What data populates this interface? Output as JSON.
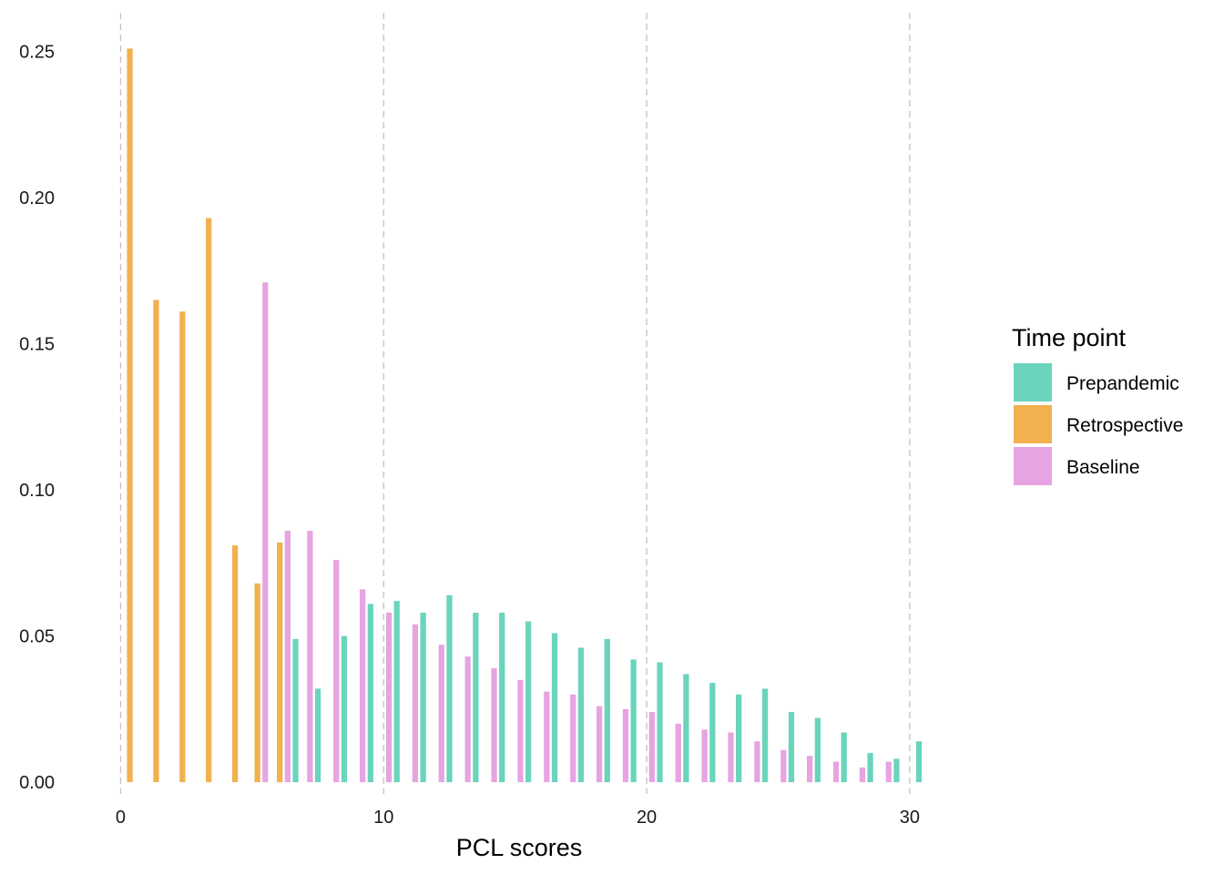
{
  "chart_data": {
    "type": "bar",
    "xlabel": "PCL scores",
    "ylabel": "",
    "title": "",
    "xlim": [
      -0.5,
      30.8
    ],
    "ylim": [
      -0.004,
      0.262
    ],
    "x_ticks": [
      0,
      10,
      20,
      30
    ],
    "y_ticks": [
      "0.00",
      "0.05",
      "0.10",
      "0.15",
      "0.20",
      "0.25"
    ],
    "grid": {
      "x_major": "dashed",
      "y": "off"
    },
    "legend": {
      "title": "Time point",
      "position": "right",
      "entries": [
        "Prepandemic",
        "Retrospective",
        "Baseline"
      ]
    },
    "series": [
      {
        "name": "Prepandemic",
        "color": "#6ad4bc",
        "points": [
          [
            6,
            0.049
          ],
          [
            7,
            0.032
          ],
          [
            8,
            0.05
          ],
          [
            9,
            0.061
          ],
          [
            10,
            0.062
          ],
          [
            11,
            0.058
          ],
          [
            12,
            0.064
          ],
          [
            13,
            0.058
          ],
          [
            14,
            0.058
          ],
          [
            15,
            0.055
          ],
          [
            16,
            0.051
          ],
          [
            17,
            0.046
          ],
          [
            18,
            0.049
          ],
          [
            19,
            0.042
          ],
          [
            20,
            0.041
          ],
          [
            21,
            0.037
          ],
          [
            22,
            0.034
          ],
          [
            23,
            0.03
          ],
          [
            24,
            0.032
          ],
          [
            25,
            0.024
          ],
          [
            26,
            0.022
          ],
          [
            27,
            0.017
          ],
          [
            28,
            0.01
          ],
          [
            29,
            0.008
          ],
          [
            30,
            0.014
          ]
        ]
      },
      {
        "name": "Retrospective",
        "color": "#f2b04f",
        "points": [
          [
            0,
            0.251
          ],
          [
            1,
            0.165
          ],
          [
            2,
            0.161
          ],
          [
            3,
            0.193
          ],
          [
            4,
            0.081
          ],
          [
            5,
            0.068
          ],
          [
            6,
            0.082
          ]
        ]
      },
      {
        "name": "Baseline",
        "color": "#e6a4e2",
        "points": [
          [
            5,
            0.171
          ],
          [
            6,
            0.086
          ],
          [
            7,
            0.086
          ],
          [
            8,
            0.076
          ],
          [
            9,
            0.066
          ],
          [
            10,
            0.058
          ],
          [
            11,
            0.054
          ],
          [
            12,
            0.047
          ],
          [
            13,
            0.043
          ],
          [
            14,
            0.039
          ],
          [
            15,
            0.035
          ],
          [
            16,
            0.031
          ],
          [
            17,
            0.03
          ],
          [
            18,
            0.026
          ],
          [
            19,
            0.025
          ],
          [
            20,
            0.024
          ],
          [
            21,
            0.02
          ],
          [
            22,
            0.018
          ],
          [
            23,
            0.017
          ],
          [
            24,
            0.014
          ],
          [
            25,
            0.011
          ],
          [
            26,
            0.009
          ],
          [
            27,
            0.007
          ],
          [
            28,
            0.005
          ],
          [
            29,
            0.007
          ]
        ]
      }
    ]
  }
}
